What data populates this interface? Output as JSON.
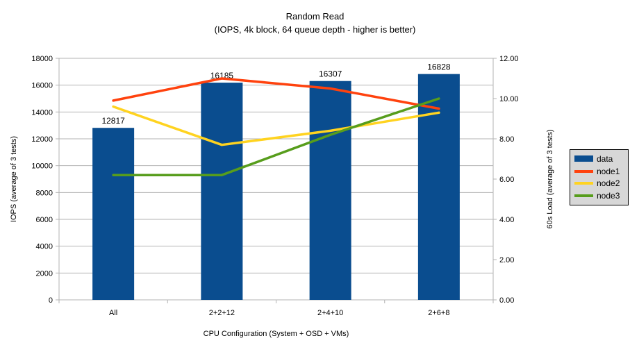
{
  "title": "Random Read",
  "subtitle": "(IOPS, 4k block, 64 queue depth - higher is better)",
  "axes": {
    "left": {
      "title": "IOPS (average of 3 tests)",
      "ticks": [
        "18000",
        "16000",
        "14000",
        "12000",
        "10000",
        "8000",
        "6000",
        "4000",
        "2000",
        "0"
      ],
      "max": 18000
    },
    "right": {
      "title": "60s Load (average of 3 tests)",
      "ticks": [
        "12.00",
        "10.00",
        "8.00",
        "6.00",
        "4.00",
        "2.00",
        "0.00"
      ],
      "max": 12
    },
    "x": {
      "title": "CPU Configuration (System + OSD + VMs)"
    }
  },
  "chart_data": {
    "type": "bar+line",
    "categories": [
      "All",
      "2+2+12",
      "2+4+10",
      "2+6+8"
    ],
    "bar_series": {
      "name": "data",
      "axis": "left",
      "color": "#0a4d8f",
      "values": [
        12817,
        16185,
        16307,
        16828
      ],
      "labels": [
        "12817",
        "16185",
        "16307",
        "16828"
      ]
    },
    "line_series": [
      {
        "name": "node1",
        "axis": "right",
        "color": "#ff420e",
        "values": [
          9.9,
          11.0,
          10.5,
          9.5
        ]
      },
      {
        "name": "node2",
        "axis": "right",
        "color": "#ffd320",
        "values": [
          9.6,
          7.7,
          8.4,
          9.3
        ]
      },
      {
        "name": "node3",
        "axis": "right",
        "color": "#579d1c",
        "values": [
          6.2,
          6.2,
          8.2,
          10.0
        ]
      }
    ],
    "ylim_left": [
      0,
      18000
    ],
    "ylim_right": [
      0,
      12
    ],
    "grid": true,
    "legend_position": "right"
  },
  "legend": {
    "items": [
      {
        "label": "data",
        "type": "rect",
        "color": "#0a4d8f"
      },
      {
        "label": "node1",
        "type": "line",
        "color": "#ff420e"
      },
      {
        "label": "node2",
        "type": "line",
        "color": "#ffd320"
      },
      {
        "label": "node3",
        "type": "line",
        "color": "#579d1c"
      }
    ]
  },
  "colors": {
    "grid": "#b3b3b3",
    "axis": "#b3b3b3",
    "legend_bg": "#d7d7d7",
    "legend_border": "#000000",
    "background": "#ffffff",
    "text": "#000000"
  }
}
